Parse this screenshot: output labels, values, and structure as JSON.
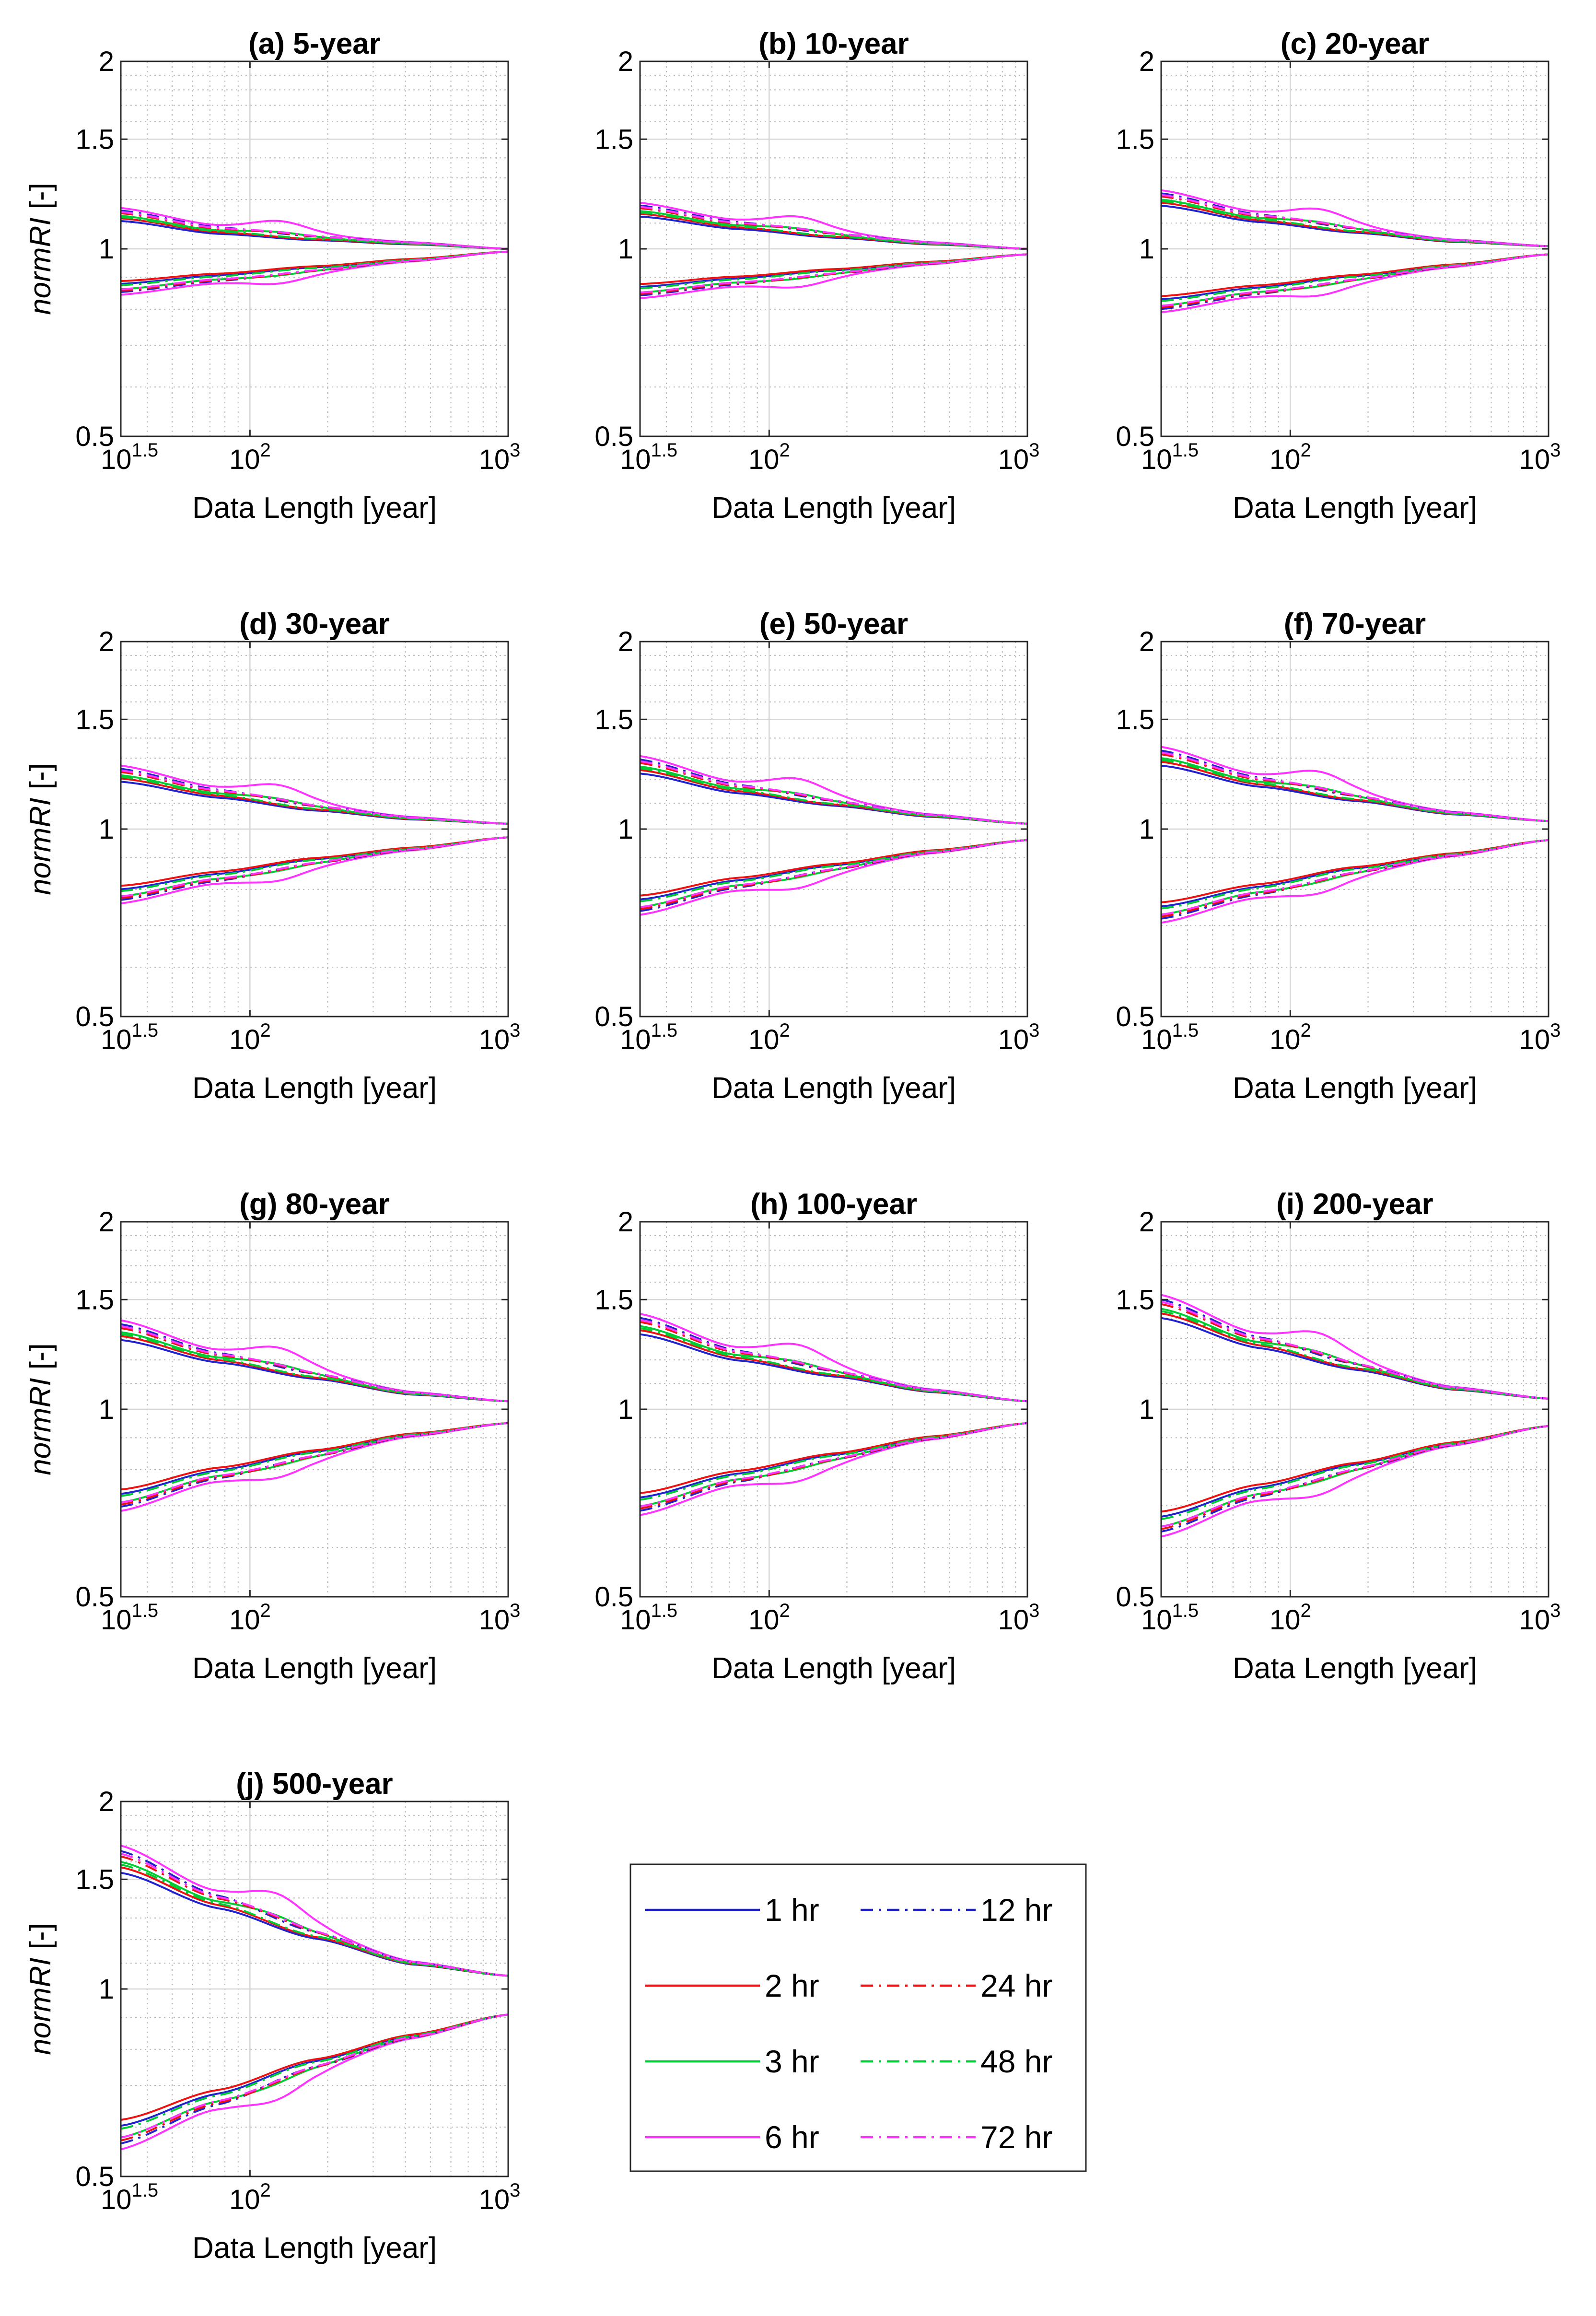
{
  "chart_data": {
    "type": "line",
    "x_label": "Data Length [year]",
    "y_label_italic": "normRI",
    "y_label_suffix": " [-]",
    "x_ticks": [
      {
        "base": "10",
        "exp": "1.5"
      },
      {
        "base": "10",
        "exp": "2"
      },
      {
        "base": "10",
        "exp": "3"
      }
    ],
    "xlim_log10": [
      1.5,
      3.0
    ],
    "ylim": [
      0.5,
      2.0
    ],
    "y_ticks": [
      "0.5",
      "1",
      "1.5",
      "2"
    ],
    "y_scale": "log",
    "grid": "major and minor, dotted",
    "legend": {
      "placement": "right of panel (j)",
      "entries": [
        {
          "label": "1 hr",
          "color": "#2222cc",
          "dash": "solid"
        },
        {
          "label": "2 hr",
          "color": "#ee1111",
          "dash": "solid"
        },
        {
          "label": "3 hr",
          "color": "#00cc33",
          "dash": "solid"
        },
        {
          "label": "6 hr",
          "color": "#ff33ff",
          "dash": "solid"
        },
        {
          "label": "12 hr",
          "color": "#2222cc",
          "dash": "dashdot"
        },
        {
          "label": "24 hr",
          "color": "#ee1111",
          "dash": "dashdot"
        },
        {
          "label": "48 hr",
          "color": "#00cc33",
          "dash": "dashdot"
        },
        {
          "label": "72 hr",
          "color": "#ff33ff",
          "dash": "dashdot"
        }
      ]
    },
    "series_note": "Each panel has an upper envelope (values > 1) and lower envelope (values < 1) per duration; x in log10(years)",
    "panels": [
      {
        "title": "(a) 5-year",
        "upper": [
          1.13,
          1.07,
          1.04,
          1.02,
          1.0
        ],
        "lower": [
          0.87,
          0.9,
          0.93,
          0.96,
          0.99
        ]
      },
      {
        "title": "(b) 10-year",
        "upper": [
          1.15,
          1.09,
          1.05,
          1.02,
          1.0
        ],
        "lower": [
          0.86,
          0.89,
          0.92,
          0.95,
          0.98
        ]
      },
      {
        "title": "(c) 20-year",
        "upper": [
          1.2,
          1.12,
          1.07,
          1.03,
          1.01
        ],
        "lower": [
          0.82,
          0.86,
          0.9,
          0.94,
          0.98
        ]
      },
      {
        "title": "(d) 30-year",
        "upper": [
          1.22,
          1.14,
          1.08,
          1.04,
          1.02
        ],
        "lower": [
          0.79,
          0.84,
          0.89,
          0.93,
          0.97
        ]
      },
      {
        "title": "(e) 50-year",
        "upper": [
          1.26,
          1.16,
          1.1,
          1.05,
          1.02
        ],
        "lower": [
          0.76,
          0.82,
          0.87,
          0.92,
          0.96
        ]
      },
      {
        "title": "(f) 70-year",
        "upper": [
          1.3,
          1.19,
          1.12,
          1.06,
          1.03
        ],
        "lower": [
          0.74,
          0.8,
          0.86,
          0.91,
          0.96
        ]
      },
      {
        "title": "(g) 80-year",
        "upper": [
          1.33,
          1.21,
          1.13,
          1.06,
          1.03
        ],
        "lower": [
          0.72,
          0.79,
          0.85,
          0.91,
          0.95
        ]
      },
      {
        "title": "(h) 100-year",
        "upper": [
          1.36,
          1.22,
          1.14,
          1.07,
          1.03
        ],
        "lower": [
          0.71,
          0.78,
          0.84,
          0.9,
          0.95
        ]
      },
      {
        "title": "(i) 200-year",
        "upper": [
          1.45,
          1.28,
          1.17,
          1.08,
          1.04
        ],
        "lower": [
          0.66,
          0.74,
          0.81,
          0.88,
          0.94
        ]
      },
      {
        "title": "(j) 500-year",
        "upper": [
          1.6,
          1.38,
          1.22,
          1.1,
          1.05
        ],
        "lower": [
          0.59,
          0.67,
          0.76,
          0.84,
          0.91
        ]
      }
    ]
  }
}
